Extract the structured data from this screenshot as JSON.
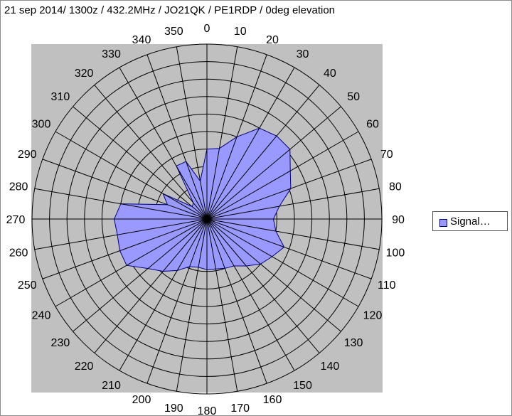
{
  "title": "21 sep 2014/ 1300z / 432.2MHz  / JO21QK / PE1RDP / 0deg elevation",
  "legend": {
    "label": "Signal…",
    "position": "right"
  },
  "colors": {
    "plot_area": "#c0c0c0",
    "series_fill": "#9999ff",
    "series_stroke": "#000080",
    "grid": "#000000"
  },
  "chart_data": {
    "type": "radar",
    "title": "21 sep 2014/ 1300z / 432.2MHz  / JO21QK / PE1RDP / 0deg elevation",
    "categories": [
      "0",
      "10",
      "20",
      "30",
      "40",
      "50",
      "60",
      "70",
      "80",
      "90",
      "100",
      "110",
      "120",
      "130",
      "140",
      "150",
      "160",
      "170",
      "180",
      "190",
      "200",
      "210",
      "220",
      "230",
      "240",
      "250",
      "260",
      "270",
      "280",
      "290",
      "300",
      "310",
      "320",
      "330",
      "340",
      "350"
    ],
    "radial_range": [
      0,
      10
    ],
    "radial_rings": 10,
    "grid": true,
    "series": [
      {
        "name": "Signal…",
        "values": [
          4.0,
          4.1,
          5.0,
          6.0,
          6.2,
          6.2,
          5.5,
          5.1,
          4.2,
          3.8,
          4.0,
          4.7,
          4.3,
          4.0,
          3.5,
          3.1,
          3.0,
          2.9,
          2.9,
          2.8,
          2.9,
          3.4,
          3.9,
          4.4,
          5.3,
          5.3,
          5.2,
          5.3,
          5.0,
          2.4,
          2.9,
          1.1,
          1.2,
          3.5,
          3.5,
          2.2
        ]
      }
    ]
  }
}
